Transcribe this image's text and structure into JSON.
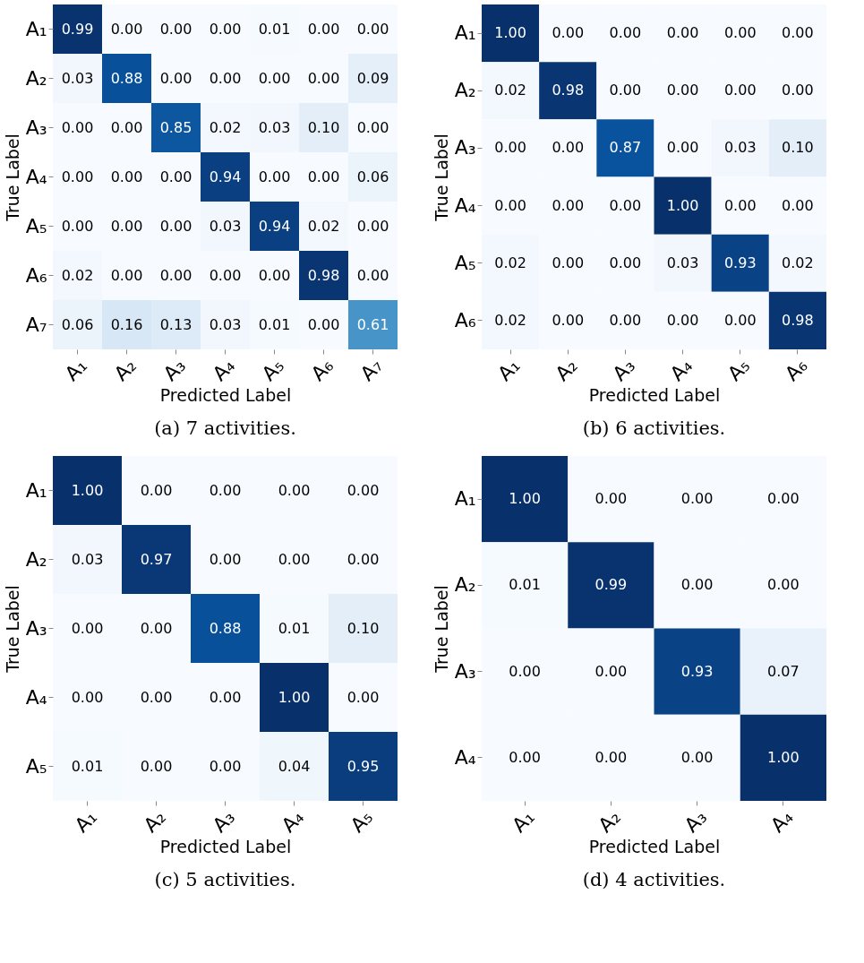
{
  "chart_data": [
    {
      "type": "heatmap",
      "title": "(a) 7 activities.",
      "xlabel": "Predicted Label",
      "ylabel": "True Label",
      "categories": [
        "A₁",
        "A₂",
        "A₃",
        "A₄",
        "A₅",
        "A₆",
        "A₇"
      ],
      "y_categories": [
        "A₁",
        "A₂",
        "A₃",
        "A₄",
        "A₅",
        "A₆",
        "A₇"
      ],
      "cells": [
        [
          0.99,
          0,
          0,
          0,
          0.01,
          0,
          0
        ],
        [
          0.03,
          0.88,
          0,
          0,
          0,
          0,
          0.09
        ],
        [
          0,
          0,
          0.85,
          0.02,
          0.03,
          0.1,
          0
        ],
        [
          0,
          0,
          0,
          0.94,
          0,
          0,
          0.06
        ],
        [
          0,
          0,
          0,
          0.03,
          0.94,
          0.02,
          0
        ],
        [
          0.02,
          0,
          0,
          0,
          0,
          0.98,
          0
        ],
        [
          0.06,
          0.16,
          0.13,
          0.03,
          0.01,
          0,
          0.61
        ]
      ],
      "cell_labels": [
        [
          "0.99",
          "0.00",
          "0.00",
          "0.00",
          "0.01",
          "0.00",
          "0.00"
        ],
        [
          "0.03",
          "0.88",
          "0.00",
          "0.00",
          "0.00",
          "0.00",
          "0.09"
        ],
        [
          "0.00",
          "0.00",
          "0.85",
          "0.02",
          "0.03",
          "0.10",
          "0.00"
        ],
        [
          "0.00",
          "0.00",
          "0.00",
          "0.94",
          "0.00",
          "0.00",
          "0.06"
        ],
        [
          "0.00",
          "0.00",
          "0.00",
          "0.03",
          "0.94",
          "0.02",
          "0.00"
        ],
        [
          "0.02",
          "0.00",
          "0.00",
          "0.00",
          "0.00",
          "0.98",
          "0.00"
        ],
        [
          "0.06",
          "0.16",
          "0.13",
          "0.03",
          "0.01",
          "0.00",
          "0.61"
        ]
      ]
    },
    {
      "type": "heatmap",
      "title": "(b) 6 activities.",
      "xlabel": "Predicted Label",
      "ylabel": "True Label",
      "categories": [
        "A₁",
        "A₂",
        "A₃",
        "A₄",
        "A₅",
        "A₆"
      ],
      "y_categories": [
        "A₁",
        "A₂",
        "A₃",
        "A₄",
        "A₅",
        "A₆"
      ],
      "cells": [
        [
          1,
          0,
          0,
          0,
          0,
          0
        ],
        [
          0.02,
          0.98,
          0,
          0,
          0,
          0
        ],
        [
          0,
          0,
          0.87,
          0,
          0.03,
          0.1
        ],
        [
          0,
          0,
          0,
          1,
          0,
          0
        ],
        [
          0.02,
          0,
          0,
          0.03,
          0.93,
          0.02
        ],
        [
          0.02,
          0,
          0,
          0,
          0,
          0.98
        ]
      ],
      "cell_labels": [
        [
          "1.00",
          "0.00",
          "0.00",
          "0.00",
          "0.00",
          "0.00"
        ],
        [
          "0.02",
          "0.98",
          "0.00",
          "0.00",
          "0.00",
          "0.00"
        ],
        [
          "0.00",
          "0.00",
          "0.87",
          "0.00",
          "0.03",
          "0.10"
        ],
        [
          "0.00",
          "0.00",
          "0.00",
          "1.00",
          "0.00",
          "0.00"
        ],
        [
          "0.02",
          "0.00",
          "0.00",
          "0.03",
          "0.93",
          "0.02"
        ],
        [
          "0.02",
          "0.00",
          "0.00",
          "0.00",
          "0.00",
          "0.98"
        ]
      ]
    },
    {
      "type": "heatmap",
      "title": "(c) 5 activities.",
      "xlabel": "Predicted Label",
      "ylabel": "True Label",
      "categories": [
        "A₁",
        "A₂",
        "A₃",
        "A₄",
        "A₅"
      ],
      "y_categories": [
        "A₁",
        "A₂",
        "A₃",
        "A₄",
        "A₅"
      ],
      "cells": [
        [
          1,
          0,
          0,
          0,
          0
        ],
        [
          0.03,
          0.97,
          0,
          0,
          0
        ],
        [
          0,
          0,
          0.88,
          0.01,
          0.1
        ],
        [
          0,
          0,
          0,
          1,
          0
        ],
        [
          0.01,
          0,
          0,
          0.04,
          0.95
        ]
      ],
      "cell_labels": [
        [
          "1.00",
          "0.00",
          "0.00",
          "0.00",
          "0.00"
        ],
        [
          "0.03",
          "0.97",
          "0.00",
          "0.00",
          "0.00"
        ],
        [
          "0.00",
          "0.00",
          "0.88",
          "0.01",
          "0.10"
        ],
        [
          "0.00",
          "0.00",
          "0.00",
          "1.00",
          "0.00"
        ],
        [
          "0.01",
          "0.00",
          "0.00",
          "0.04",
          "0.95"
        ]
      ]
    },
    {
      "type": "heatmap",
      "title": "(d) 4 activities.",
      "xlabel": "Predicted Label",
      "ylabel": "True Label",
      "categories": [
        "A₁",
        "A₂",
        "A₃",
        "A₄"
      ],
      "y_categories": [
        "A₁",
        "A₂",
        "A₃",
        "A₄"
      ],
      "cells": [
        [
          1,
          0,
          0,
          0
        ],
        [
          0.01,
          0.99,
          0,
          0
        ],
        [
          0,
          0,
          0.93,
          0.07
        ],
        [
          0,
          0,
          0,
          1
        ]
      ],
      "cell_labels": [
        [
          "1.00",
          "0.00",
          "0.00",
          "0.00"
        ],
        [
          "0.01",
          "0.99",
          "0.00",
          "0.00"
        ],
        [
          "0.00",
          "0.00",
          "0.93",
          "0.07"
        ],
        [
          "0.00",
          "0.00",
          "0.00",
          "1.00"
        ]
      ]
    }
  ]
}
